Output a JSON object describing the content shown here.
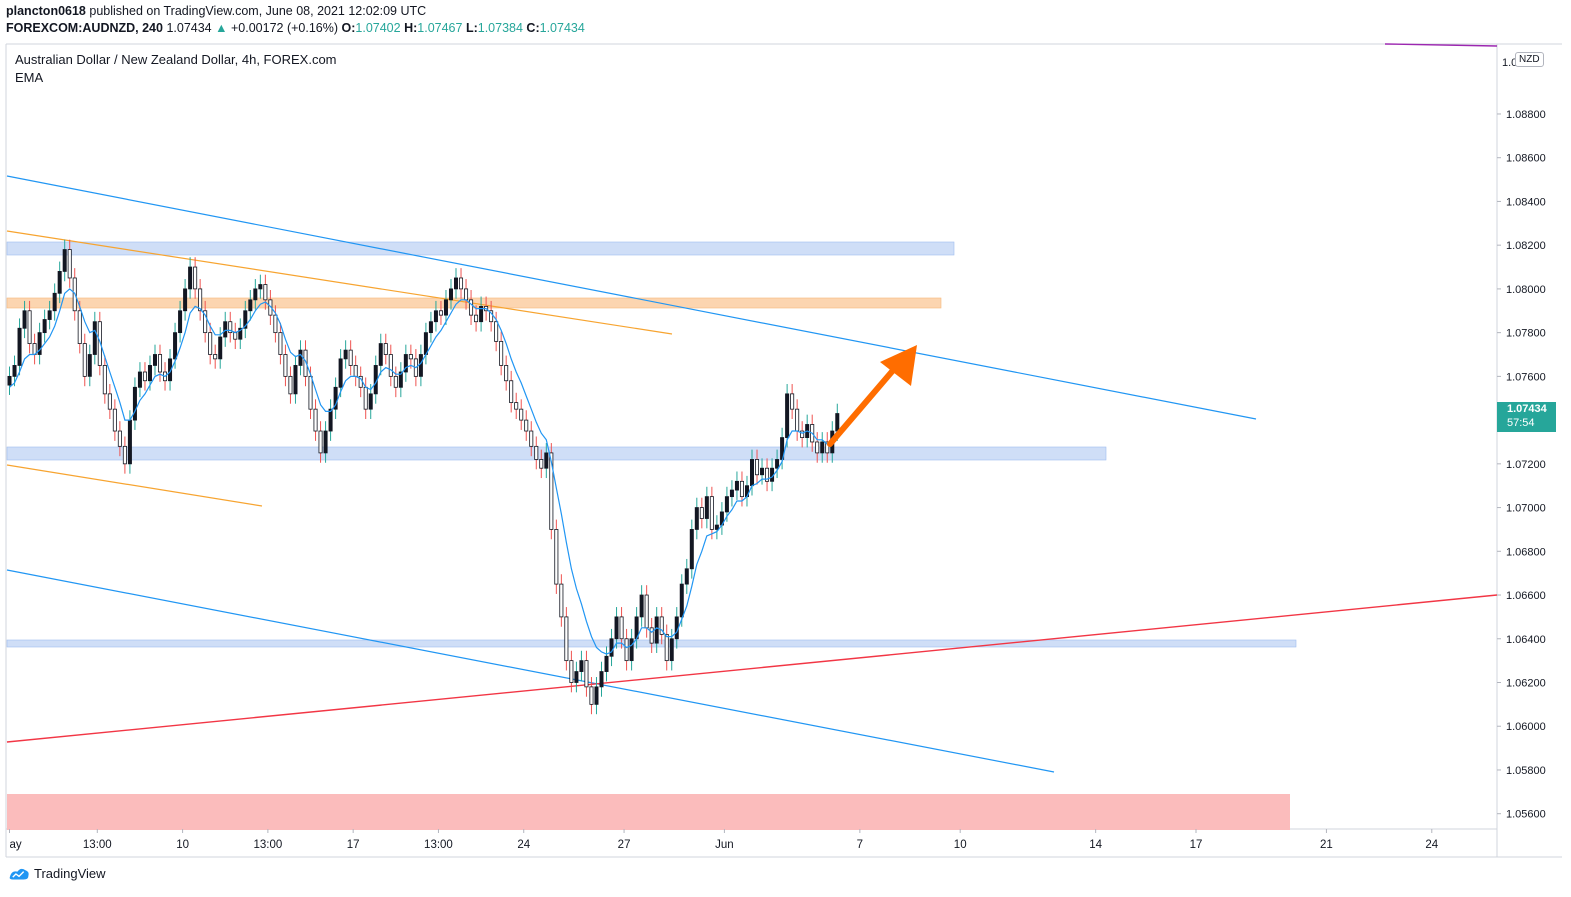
{
  "header": {
    "publisher": "plancton0618",
    "published_text": "published on TradingView.com, June 08, 2021 12:02:09 UTC",
    "symbol": "FOREXCOM:AUDNZD, 240",
    "last": "1.07434",
    "change": "+0.00172 (+0.16%)",
    "o_label": "O:",
    "o_val": "1.07402",
    "h_label": "H:",
    "h_val": "1.07467",
    "l_label": "L:",
    "l_val": "1.07384",
    "c_label": "C:",
    "c_val": "1.07434"
  },
  "legend": {
    "title": "Australian Dollar / New Zealand Dollar, 4h, FOREX.com",
    "indicator": "EMA"
  },
  "price_axis": {
    "currency": "NZD",
    "current_price": "1.07434",
    "countdown": "57:54"
  },
  "footer": {
    "brand": "TradingView"
  },
  "colors": {
    "up": "#26a69a",
    "down": "#ef5350",
    "candle_body": "#131722",
    "ema": "#2196f3",
    "zone_blue": "#cfdef7",
    "zone_orange": "#fcd5b0",
    "zone_red": "#fbbcbc",
    "trend_red": "#f23645",
    "trend_orange": "#f7a430",
    "arrow": "#ff6d00"
  },
  "chart_data": {
    "type": "candlestick",
    "ylim": [
      1.0553,
      1.0912
    ],
    "xlim": [
      0,
      297
    ],
    "y_ticks": [
      "1.08800",
      "1.08600",
      "1.08400",
      "1.08200",
      "1.08000",
      "1.07800",
      "1.07600",
      "1.07400",
      "1.07200",
      "1.07000",
      "1.06800",
      "1.06600",
      "1.06400",
      "1.06200",
      "1.06000",
      "1.05800",
      "1.05600"
    ],
    "y_tick_values": [
      1.088,
      1.086,
      1.084,
      1.082,
      1.08,
      1.078,
      1.076,
      1.074,
      1.072,
      1.07,
      1.068,
      1.066,
      1.064,
      1.062,
      1.06,
      1.058,
      1.056
    ],
    "x_ticks": [
      {
        "label": "ay",
        "x": 0.5
      },
      {
        "label": "13:00",
        "x": 18
      },
      {
        "label": "10",
        "x": 35
      },
      {
        "label": "13:00",
        "x": 52
      },
      {
        "label": "17",
        "x": 69
      },
      {
        "label": "13:00",
        "x": 86
      },
      {
        "label": "24",
        "x": 103
      },
      {
        "label": "27",
        "x": 123
      },
      {
        "label": "Jun",
        "x": 143
      },
      {
        "label": "7",
        "x": 170
      },
      {
        "label": "10",
        "x": 190
      },
      {
        "label": "14",
        "x": 217
      },
      {
        "label": "17",
        "x": 237
      },
      {
        "label": "21",
        "x": 263
      },
      {
        "label": "24",
        "x": 284
      }
    ],
    "candles_close": [
      1.076,
      1.0765,
      1.0782,
      1.079,
      1.0775,
      1.077,
      1.078,
      1.0786,
      1.079,
      1.0798,
      1.0808,
      1.0818,
      1.0805,
      1.079,
      1.0775,
      1.076,
      1.077,
      1.0785,
      1.0765,
      1.0752,
      1.0745,
      1.0735,
      1.0728,
      1.072,
      1.074,
      1.0755,
      1.0762,
      1.0758,
      1.0765,
      1.077,
      1.0762,
      1.0758,
      1.0768,
      1.078,
      1.079,
      1.08,
      1.081,
      1.08,
      1.079,
      1.078,
      1.077,
      1.0768,
      1.0778,
      1.0785,
      1.078,
      1.0777,
      1.0782,
      1.079,
      1.0795,
      1.08,
      1.0802,
      1.0795,
      1.0788,
      1.078,
      1.077,
      1.076,
      1.0752,
      1.0765,
      1.0772,
      1.076,
      1.0745,
      1.0735,
      1.0725,
      1.0735,
      1.0745,
      1.0755,
      1.0768,
      1.0772,
      1.0765,
      1.076,
      1.0755,
      1.0745,
      1.0752,
      1.0765,
      1.0775,
      1.077,
      1.076,
      1.0755,
      1.0762,
      1.077,
      1.0768,
      1.076,
      1.077,
      1.078,
      1.0785,
      1.079,
      1.0788,
      1.0795,
      1.08,
      1.0805,
      1.08,
      1.0795,
      1.0788,
      1.0785,
      1.0792,
      1.079,
      1.0785,
      1.0776,
      1.0765,
      1.0758,
      1.0748,
      1.0745,
      1.074,
      1.0735,
      1.0728,
      1.0722,
      1.0718,
      1.0725,
      1.069,
      1.0665,
      1.065,
      1.063,
      1.062,
      1.0625,
      1.063,
      1.0618,
      1.061,
      1.0618,
      1.0625,
      1.0632,
      1.064,
      1.065,
      1.064,
      1.063,
      1.064,
      1.065,
      1.066,
      1.0645,
      1.0638,
      1.065,
      1.0642,
      1.063,
      1.064,
      1.065,
      1.0665,
      1.0672,
      1.069,
      1.07,
      1.0695,
      1.0705,
      1.069,
      1.0692,
      1.0698,
      1.0705,
      1.0708,
      1.0712,
      1.0705,
      1.071,
      1.0722,
      1.0715,
      1.0718,
      1.0712,
      1.0718,
      1.0722,
      1.0732,
      1.0752,
      1.0745,
      1.0735,
      1.0732,
      1.0738,
      1.073,
      1.0725,
      1.073,
      1.0725,
      1.0735,
      1.0743
    ],
    "ema_close": [
      1.0755,
      1.0757,
      1.0762,
      1.0768,
      1.077,
      1.077,
      1.0772,
      1.0775,
      1.0778,
      1.0783,
      1.079,
      1.0798,
      1.08,
      1.0798,
      1.0792,
      1.0785,
      1.078,
      1.0781,
      1.0776,
      1.0769,
      1.0762,
      1.0755,
      1.0748,
      1.074,
      1.074,
      1.0744,
      1.0749,
      1.0752,
      1.0756,
      1.076,
      1.0761,
      1.076,
      1.0762,
      1.0767,
      1.0773,
      1.078,
      1.0789,
      1.0792,
      1.0791,
      1.0788,
      1.0783,
      1.0779,
      1.0779,
      1.0781,
      1.0781,
      1.078,
      1.0781,
      1.0783,
      1.0786,
      1.079,
      1.0793,
      1.0794,
      1.0792,
      1.0789,
      1.0784,
      1.0777,
      1.0771,
      1.0769,
      1.077,
      1.0767,
      1.0761,
      1.0754,
      1.0747,
      1.0744,
      1.0744,
      1.0747,
      1.0753,
      1.0758,
      1.076,
      1.076,
      1.0759,
      1.0755,
      1.0754,
      1.0757,
      1.0762,
      1.0764,
      1.0763,
      1.0761,
      1.0761,
      1.0764,
      1.0765,
      1.0764,
      1.0766,
      1.077,
      1.0774,
      1.0778,
      1.0781,
      1.0785,
      1.0789,
      1.0793,
      1.0795,
      1.0795,
      1.0793,
      1.0791,
      1.0791,
      1.0791,
      1.0789,
      1.0786,
      1.0781,
      1.0775,
      1.0768,
      1.0762,
      1.0757,
      1.0751,
      1.0745,
      1.0739,
      1.0734,
      1.0731,
      1.0721,
      1.0709,
      1.0697,
      1.0684,
      1.0672,
      1.0663,
      1.0656,
      1.0648,
      1.0641,
      1.0636,
      1.0634,
      1.0633,
      1.0634,
      1.0638,
      1.0638,
      1.0636,
      1.0637,
      1.064,
      1.0645,
      1.0645,
      1.0643,
      1.0645,
      1.0644,
      1.0641,
      1.0641,
      1.0643,
      1.0649,
      1.0655,
      1.0664,
      1.0674,
      1.068,
      1.0687,
      1.0688,
      1.0689,
      1.0692,
      1.0696,
      1.0699,
      1.0703,
      1.0703,
      1.0705,
      1.071,
      1.0711,
      1.0713,
      1.0713,
      1.0714,
      1.0717,
      1.0721,
      1.0731,
      1.0735,
      1.0735,
      1.0734,
      1.0735,
      1.0734,
      1.0731,
      1.0731,
      1.0729,
      1.0731,
      1.0735
    ]
  }
}
